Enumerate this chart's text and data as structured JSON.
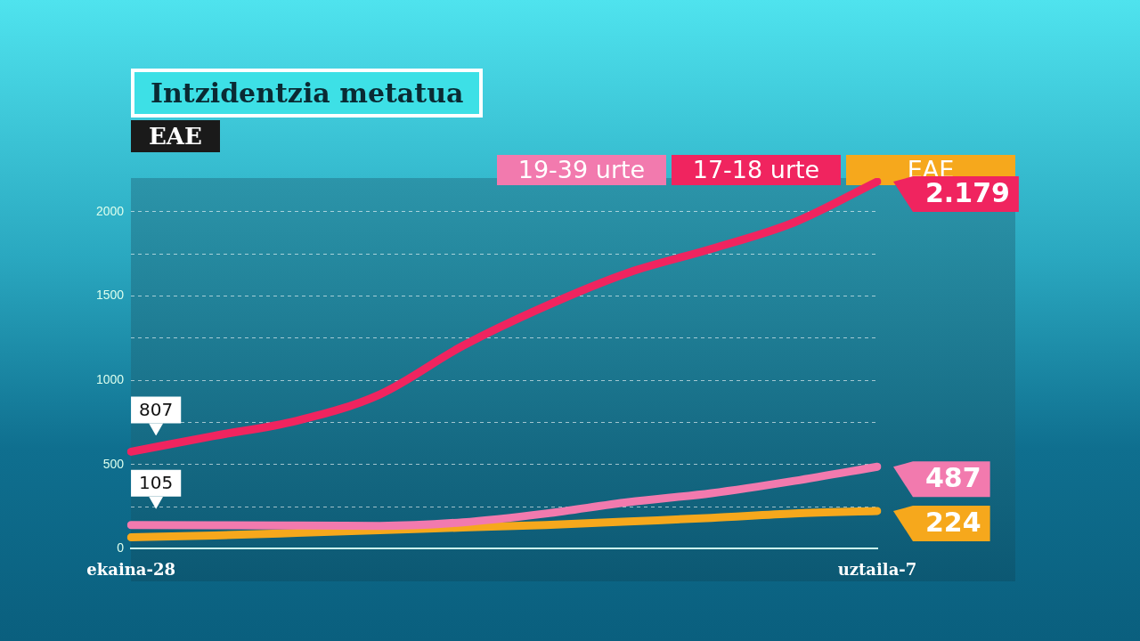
{
  "chart_data": {
    "type": "line",
    "title": "Intzidentzia metatua",
    "subtitle": "EAE",
    "categories": [
      "ekaina-28",
      null,
      null,
      null,
      null,
      null,
      null,
      null,
      null,
      "uztaila-7"
    ],
    "series": [
      {
        "name": "19-39 urte",
        "color": "#f27aae",
        "values": [
          141,
          140,
          138,
          136,
          157,
          209,
          277,
          330,
          403,
          487
        ],
        "value_labels": [
          null,
          null,
          null,
          null,
          null,
          null,
          null,
          null,
          null,
          "487"
        ]
      },
      {
        "name": "17-18 urte",
        "color": "#f0245f",
        "values": [
          576,
          670,
          760,
          916,
          1204,
          1440,
          1639,
          1780,
          1937,
          2179
        ],
        "value_labels": [
          null,
          null,
          null,
          null,
          null,
          null,
          null,
          null,
          null,
          "2.179"
        ]
      },
      {
        "name": "EAE",
        "color": "#f6a81c",
        "values": [
          68,
          79,
          94,
          110,
          126,
          141,
          162,
          183,
          209,
          224
        ],
        "value_labels": [
          null,
          null,
          null,
          null,
          null,
          null,
          null,
          null,
          null,
          "224"
        ]
      }
    ],
    "annotations": [
      {
        "text": "807",
        "x": "ekaina-28",
        "y": 576
      },
      {
        "text": "105",
        "x": "ekaina-28",
        "y": 141
      }
    ],
    "ylim": [
      0,
      2200
    ],
    "yticks": [
      0,
      {
        "value": 250,
        "label": null
      },
      500,
      {
        "value": 750,
        "label": null
      },
      1000,
      {
        "value": 1250,
        "label": null
      },
      1500,
      {
        "value": 1750,
        "label": null
      },
      2000
    ],
    "grid": "y",
    "legend": "top right",
    "marker": "none",
    "line_style": "solid"
  }
}
